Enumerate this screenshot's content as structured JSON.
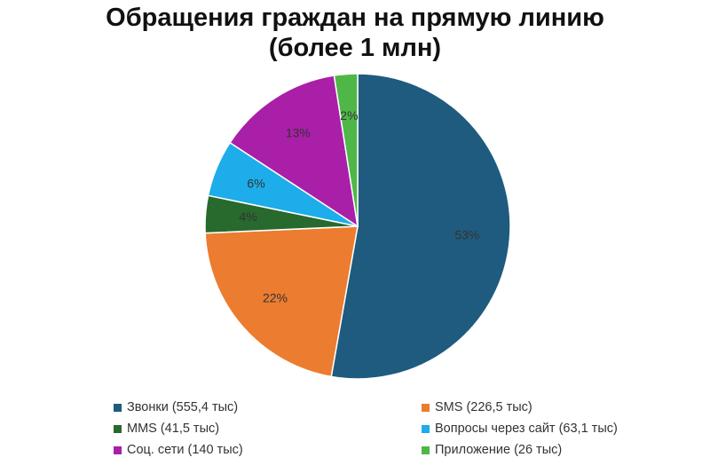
{
  "title_line1": "Обращения граждан на прямую линию",
  "title_line2": "(более 1 млн)",
  "chart_data": {
    "type": "pie",
    "title": "Обращения граждан на прямую линию (более 1 млн)",
    "legend_position": "bottom",
    "slices": [
      {
        "label": "Звонки (555,4 тыс)",
        "value": 555.4,
        "percent_label": "53%",
        "color": "#1f5b7e",
        "label_color": "#333333"
      },
      {
        "label": "SMS (226,5 тыс)",
        "value": 226.5,
        "percent_label": "22%",
        "color": "#ec7c30",
        "label_color": "#333333"
      },
      {
        "label": "MMS (41,5 тыс)",
        "value": 41.5,
        "percent_label": "4%",
        "color": "#28692e",
        "label_color": "#333333"
      },
      {
        "label": "Вопросы через сайт (63,1 тыс)",
        "value": 63.1,
        "percent_label": "6%",
        "color": "#1cadea",
        "label_color": "#333333"
      },
      {
        "label": "Соц. сети (140 тыс)",
        "value": 140,
        "percent_label": "13%",
        "color": "#a91fa8",
        "label_color": "#333333"
      },
      {
        "label": "Приложение (26 тыс)",
        "value": 26,
        "percent_label": "2%",
        "color": "#4fb748",
        "label_color": "#333333"
      }
    ]
  }
}
